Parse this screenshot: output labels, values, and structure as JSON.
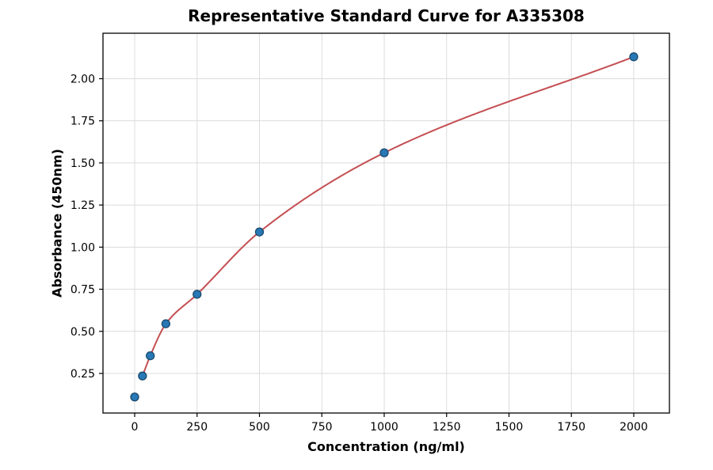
{
  "chart_data": {
    "type": "scatter",
    "title": "Representative Standard Curve for A335308",
    "xlabel": "Concentration (ng/ml)",
    "ylabel": "Absorbance (450nm)",
    "xlim": [
      -127,
      2143
    ],
    "ylim": [
      0.015,
      2.27
    ],
    "x_ticks": [
      0,
      250,
      500,
      750,
      1000,
      1250,
      1500,
      1750,
      2000
    ],
    "y_ticks": [
      0.25,
      0.5,
      0.75,
      1.0,
      1.25,
      1.5,
      1.75,
      2.0
    ],
    "grid": true,
    "legend_position": "none",
    "series": [
      {
        "name": "standard-points",
        "type": "scatter",
        "x": [
          0,
          31.25,
          62.5,
          125,
          250,
          500,
          1000,
          2000
        ],
        "y": [
          0.11,
          0.235,
          0.355,
          0.545,
          0.72,
          1.09,
          1.56,
          2.13
        ],
        "marker_color": "#2878b5",
        "marker_edge_color": "#1a4a6e",
        "marker_radius": 5
      },
      {
        "name": "fit-curve",
        "type": "line",
        "x": [
          31.25,
          62.5,
          125,
          250,
          500,
          1000,
          2000
        ],
        "y": [
          0.235,
          0.355,
          0.545,
          0.72,
          1.09,
          1.56,
          2.13
        ],
        "color": "#c44e52",
        "line_width": 2
      }
    ],
    "colors": {
      "grid": "#dcdcdc",
      "axis_box": "#000000",
      "background": "#ffffff"
    }
  }
}
